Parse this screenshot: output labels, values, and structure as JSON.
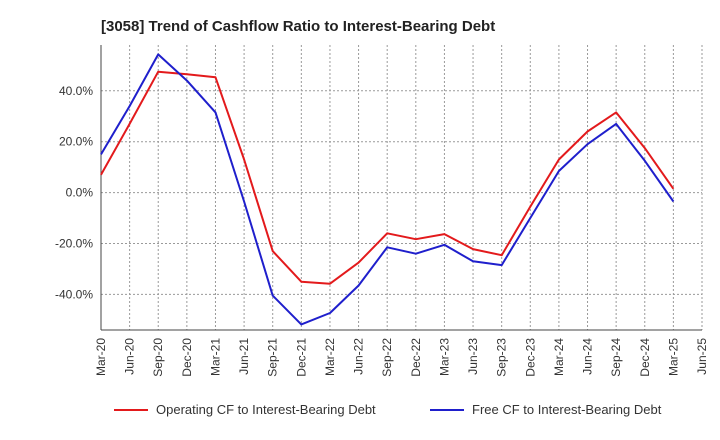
{
  "chart_data": {
    "type": "line",
    "title": "[3058]  Trend of Cashflow Ratio to Interest-Bearing Debt",
    "xlabel": "",
    "ylabel": "",
    "categories": [
      "Mar-20",
      "Jun-20",
      "Sep-20",
      "Dec-20",
      "Mar-21",
      "Jun-21",
      "Sep-21",
      "Dec-21",
      "Mar-22",
      "Jun-22",
      "Sep-22",
      "Dec-22",
      "Mar-23",
      "Jun-23",
      "Sep-23",
      "Dec-23",
      "Mar-24",
      "Jun-24",
      "Sep-24",
      "Dec-24",
      "Mar-25",
      "Jun-25"
    ],
    "ylim": [
      -54,
      58
    ],
    "yticks": [
      -40,
      -20,
      0,
      20,
      40
    ],
    "ytick_labels": [
      "-40.0%",
      "-20.0%",
      "0.0%",
      "20.0%",
      "40.0%"
    ],
    "grid": true,
    "legend_position": "bottom",
    "series": [
      {
        "name": "Operating CF to Interest-Bearing Debt",
        "color": "#e31a1c",
        "values": [
          7,
          27,
          47.5,
          46.5,
          45.3,
          13,
          -23,
          -35,
          -35.8,
          -27.5,
          -16,
          -18.3,
          -16.3,
          -22.2,
          -24.6,
          -5.5,
          13,
          24,
          31.5,
          17.5,
          1.5,
          null
        ]
      },
      {
        "name": "Free CF to Interest-Bearing Debt",
        "color": "#1f1fcc",
        "values": [
          15,
          34,
          54.3,
          44,
          31.5,
          -3.5,
          -40.5,
          -51.8,
          -47.3,
          -36.5,
          -21.5,
          -24,
          -20.5,
          -27,
          -28.5,
          -10,
          8.5,
          19,
          27,
          12.5,
          -3.5,
          null
        ]
      }
    ]
  }
}
